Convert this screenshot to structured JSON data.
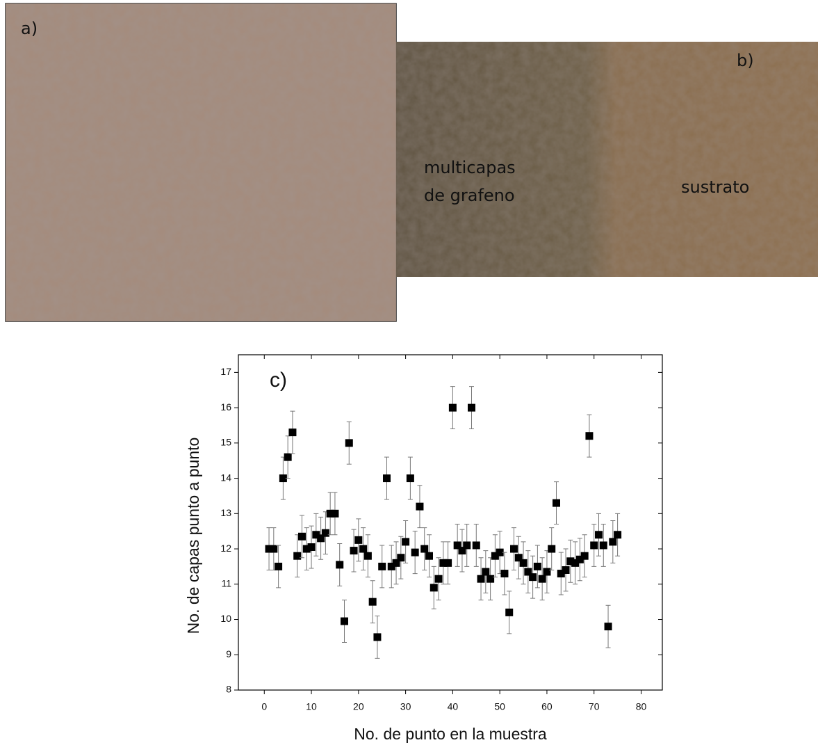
{
  "panels": {
    "a": {
      "label": "a)"
    },
    "b": {
      "label": "b)",
      "left_text_1": "multicapas",
      "left_text_2": "de grafeno",
      "right_text": "sustrato"
    }
  },
  "chart_data": {
    "type": "scatter",
    "panel_label": "c)",
    "x_label": "No. de punto en la muestra",
    "y_label": "No. de capas punto a punto",
    "x": [
      1,
      2,
      3,
      4,
      5,
      6,
      7,
      8,
      9,
      10,
      11,
      12,
      13,
      14,
      15,
      16,
      17,
      18,
      19,
      20,
      21,
      22,
      23,
      24,
      25,
      26,
      27,
      28,
      29,
      30,
      31,
      32,
      33,
      34,
      35,
      36,
      37,
      38,
      39,
      40,
      41,
      42,
      43,
      44,
      45,
      46,
      47,
      48,
      49,
      50,
      51,
      52,
      53,
      54,
      55,
      56,
      57,
      58,
      59,
      60,
      61,
      62,
      63,
      64,
      65,
      66,
      67,
      68,
      69,
      70,
      71,
      72,
      73,
      74,
      75
    ],
    "values": [
      12.0,
      12.0,
      11.5,
      14.0,
      14.6,
      15.3,
      11.8,
      12.35,
      12.0,
      12.05,
      12.4,
      12.3,
      12.45,
      13.0,
      13.0,
      11.55,
      9.95,
      15.0,
      11.95,
      12.25,
      12.0,
      11.8,
      10.5,
      9.5,
      11.5,
      14.0,
      11.5,
      11.6,
      11.75,
      12.2,
      14.0,
      11.9,
      13.2,
      12.0,
      11.8,
      10.9,
      11.15,
      11.6,
      11.6,
      16.0,
      12.1,
      11.95,
      12.1,
      16.0,
      12.1,
      11.15,
      11.35,
      11.15,
      11.8,
      11.9,
      11.3,
      10.2,
      12.0,
      11.75,
      11.6,
      11.35,
      11.2,
      11.5,
      11.15,
      11.35,
      12.0,
      13.3,
      11.3,
      11.4,
      11.65,
      11.6,
      11.7,
      11.8,
      15.2,
      12.1,
      12.4,
      12.1,
      9.8,
      12.2,
      12.4
    ],
    "error": 0.6,
    "color": "#000000",
    "xlim": [
      -5.5,
      84.5
    ],
    "ylim": [
      8,
      17.5
    ],
    "xticks": [
      0,
      10,
      20,
      30,
      40,
      50,
      60,
      70,
      80
    ],
    "yticks": [
      8,
      9,
      10,
      11,
      12,
      13,
      14,
      15,
      16,
      17
    ]
  }
}
